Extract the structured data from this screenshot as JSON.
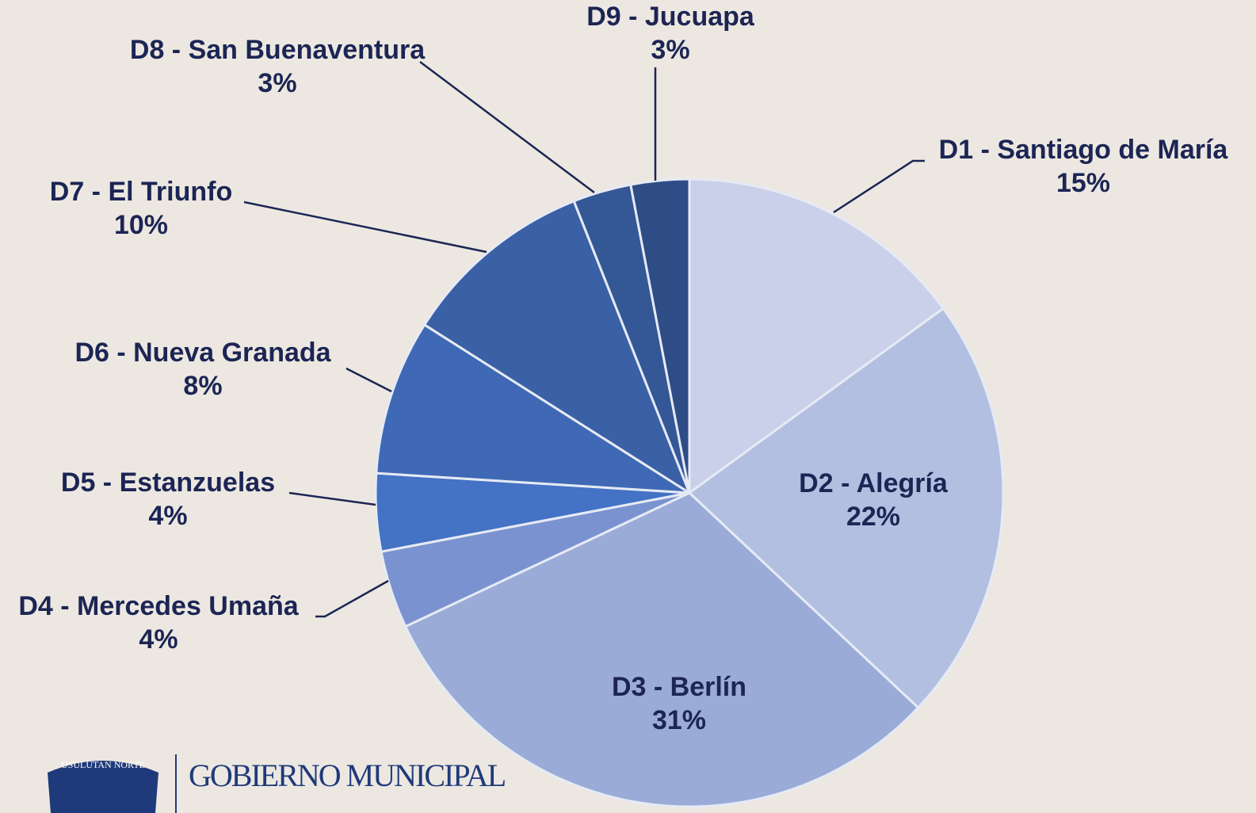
{
  "chart_data": {
    "type": "pie",
    "categories": [
      "D1 - Santiago de María",
      "D2 - Alegría",
      "D3 - Berlín",
      "D4 - Mercedes Umaña",
      "D5 - Estanzuelas",
      "D6 - Nueva Granada",
      "D7 - El Triunfo",
      "D8 - San Buenaventura",
      "D9 - Jucuapa"
    ],
    "values": [
      15,
      22,
      31,
      4,
      4,
      8,
      10,
      3,
      3
    ],
    "value_labels": [
      "15%",
      "22%",
      "31%",
      "4%",
      "4%",
      "8%",
      "10%",
      "3%",
      "3%"
    ],
    "colors": [
      "#cad0ea",
      "#b3bfe0",
      "#9aabd8",
      "#7a93d0",
      "#4472c4",
      "#3f69b5",
      "#3a60a6",
      "#345796",
      "#2e4d87"
    ]
  },
  "logo": {
    "badge": "USULUTAN NORTE",
    "text": "GOBIERNO MUNICIPAL"
  }
}
